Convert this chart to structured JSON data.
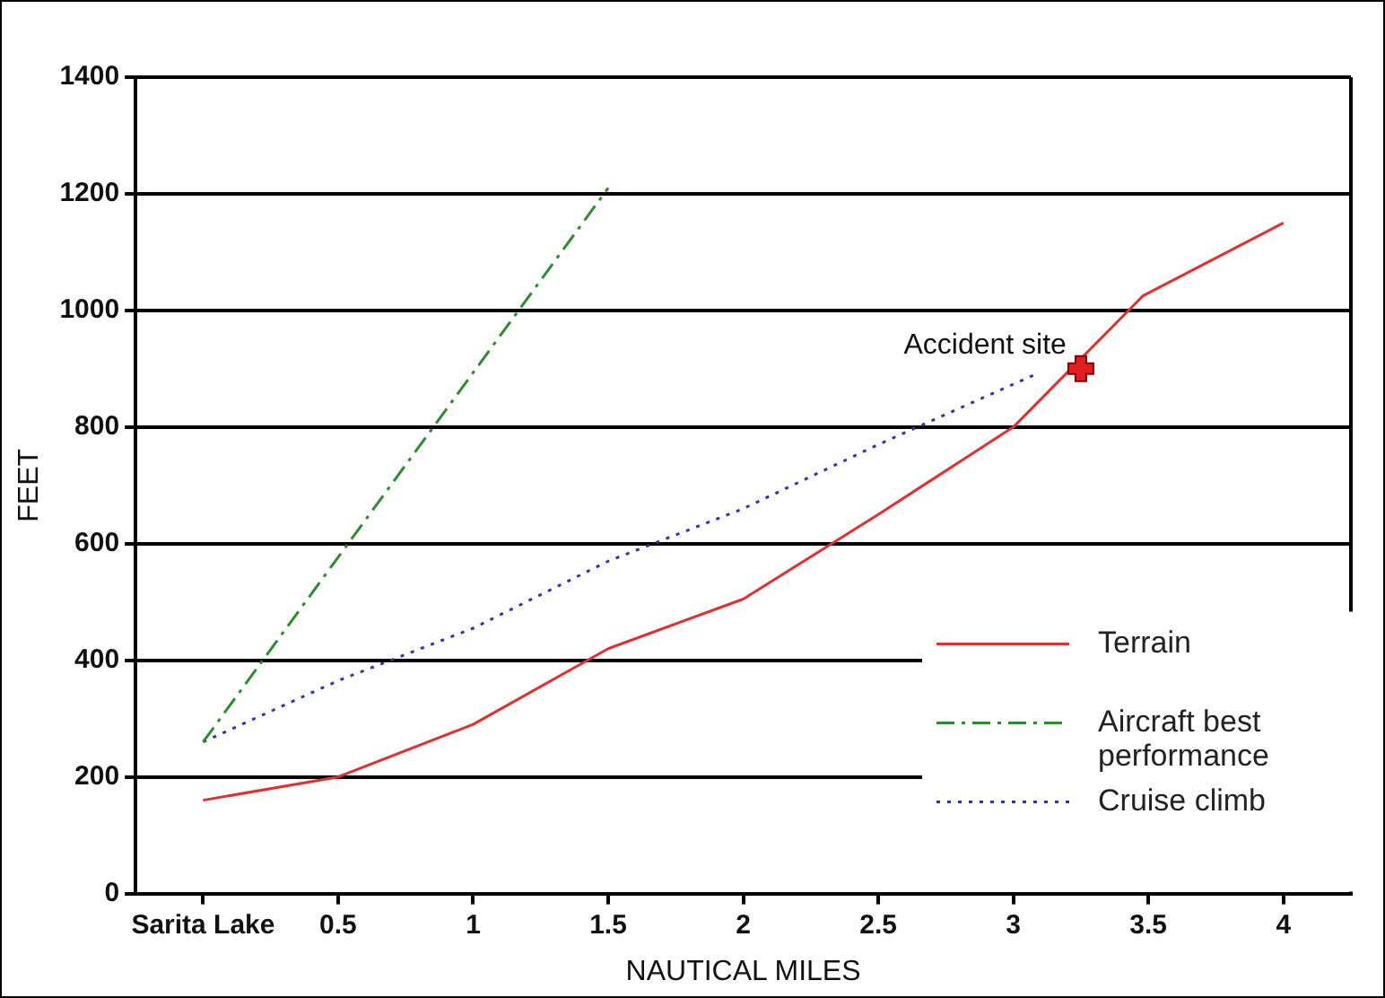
{
  "chart_data": {
    "type": "line",
    "xlabel": "NAUTICAL MILES",
    "ylabel": "FEET",
    "xlim": [
      -0.25,
      4.25
    ],
    "xticks": [
      {
        "value": 0,
        "label": "Sarita Lake"
      },
      0.5,
      1,
      1.5,
      2,
      2.5,
      3,
      3.5,
      4
    ],
    "ylim": [
      0,
      1400
    ],
    "yticks": [
      0,
      200,
      400,
      600,
      800,
      1000,
      1200,
      1400
    ],
    "series": [
      {
        "name": "Terrain",
        "color": "#e03030",
        "line_style": "solid",
        "x": [
          0,
          0.5,
          1,
          1.5,
          2,
          2.5,
          3,
          3.48,
          4
        ],
        "values": [
          160,
          200,
          290,
          420,
          505,
          650,
          800,
          1025,
          1150
        ]
      },
      {
        "name": "Aircraft best performance",
        "color": "#2e8b2e",
        "line_style": "dashed",
        "x": [
          0,
          1.5
        ],
        "values": [
          260,
          1210
        ]
      },
      {
        "name": "Cruise climb",
        "color": "#3333aa",
        "line_style": "dotted",
        "x": [
          0,
          0.5,
          1,
          1.5,
          2,
          2.5,
          3.08
        ],
        "values": [
          260,
          365,
          455,
          570,
          660,
          770,
          890
        ]
      }
    ],
    "annotations": [
      {
        "text": "Accident site",
        "x": 3.25,
        "y": 900
      }
    ],
    "grid": "y",
    "legend": "right",
    "marker": "none"
  }
}
